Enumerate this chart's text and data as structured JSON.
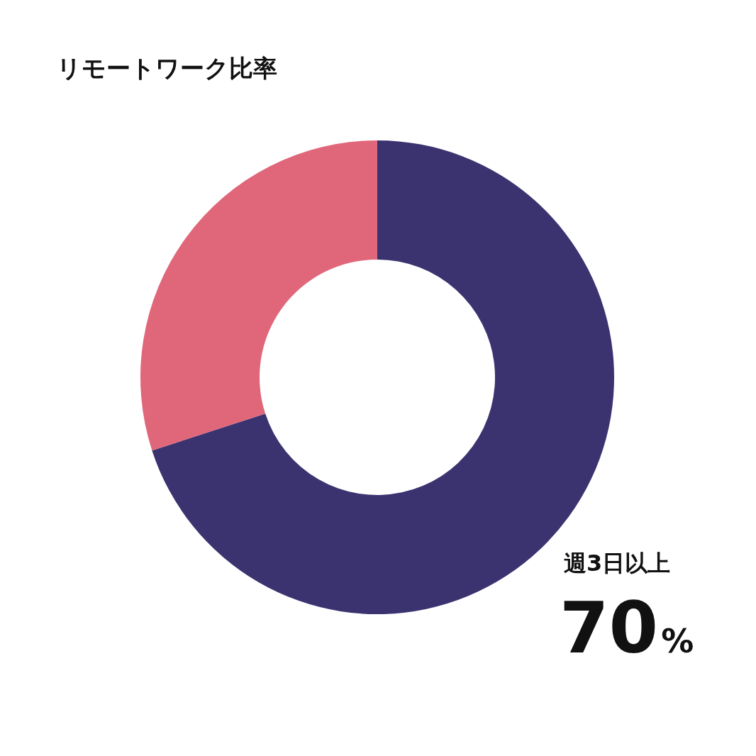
{
  "chart_data": {
    "type": "donut",
    "title": "リモートワーク比率",
    "categories": [
      "週3日以上",
      null
    ],
    "values": [
      70,
      30
    ],
    "colors": [
      "#3b3370",
      "#e0677a"
    ],
    "value_labels": [
      "70%",
      null
    ],
    "legend": false
  }
}
